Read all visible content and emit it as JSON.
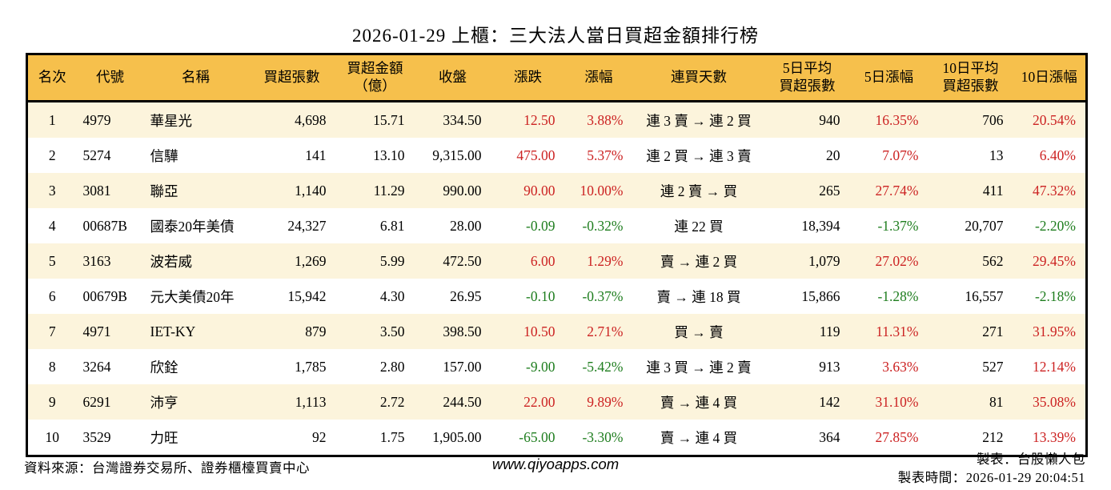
{
  "title": "2026-01-29 上櫃：三大法人當日買超金額排行榜",
  "colors": {
    "header_bg": "#F6C04C",
    "row_alt_bg": "#FCF4DC",
    "up_red": "#CC2222",
    "down_green": "#1E7D1E",
    "border": "#000000"
  },
  "table": {
    "columns": [
      "名次",
      "代號",
      "名稱",
      "買超張數",
      "買超金額\n（億）",
      "收盤",
      "漲跌",
      "漲幅",
      "連買天數",
      "5日平均\n買超張數",
      "5日漲幅",
      "10日平均\n買超張數",
      "10日漲幅"
    ],
    "rows": [
      [
        "1",
        "4979",
        "華星光",
        "4,698",
        "15.71",
        "334.50",
        "12.50",
        "3.88%",
        "連 3 賣 → 連 2 買",
        "940",
        "16.35%",
        "706",
        "20.54%"
      ],
      [
        "2",
        "5274",
        "信驊",
        "141",
        "13.10",
        "9,315.00",
        "475.00",
        "5.37%",
        "連 2 買 → 連 3 賣",
        "20",
        "7.07%",
        "13",
        "6.40%"
      ],
      [
        "3",
        "3081",
        "聯亞",
        "1,140",
        "11.29",
        "990.00",
        "90.00",
        "10.00%",
        "連 2 賣 → 買",
        "265",
        "27.74%",
        "411",
        "47.32%"
      ],
      [
        "4",
        "00687B",
        "國泰20年美債",
        "24,327",
        "6.81",
        "28.00",
        "-0.09",
        "-0.32%",
        "連 22 買",
        "18,394",
        "-1.37%",
        "20,707",
        "-2.20%"
      ],
      [
        "5",
        "3163",
        "波若威",
        "1,269",
        "5.99",
        "472.50",
        "6.00",
        "1.29%",
        "賣 → 連 2 買",
        "1,079",
        "27.02%",
        "562",
        "29.45%"
      ],
      [
        "6",
        "00679B",
        "元大美債20年",
        "15,942",
        "4.30",
        "26.95",
        "-0.10",
        "-0.37%",
        "賣 → 連 18 買",
        "15,866",
        "-1.28%",
        "16,557",
        "-2.18%"
      ],
      [
        "7",
        "4971",
        "IET-KY",
        "879",
        "3.50",
        "398.50",
        "10.50",
        "2.71%",
        "買 → 賣",
        "119",
        "11.31%",
        "271",
        "31.95%"
      ],
      [
        "8",
        "3264",
        "欣銓",
        "1,785",
        "2.80",
        "157.00",
        "-9.00",
        "-5.42%",
        "連 3 買 → 連 2 賣",
        "913",
        "3.63%",
        "527",
        "12.14%"
      ],
      [
        "9",
        "6291",
        "沛亨",
        "1,113",
        "2.72",
        "244.50",
        "22.00",
        "9.89%",
        "賣 → 連 4 買",
        "142",
        "31.10%",
        "81",
        "35.08%"
      ],
      [
        "10",
        "3529",
        "力旺",
        "92",
        "1.75",
        "1,905.00",
        "-65.00",
        "-3.30%",
        "賣 → 連 4 買",
        "364",
        "27.85%",
        "212",
        "13.39%"
      ]
    ]
  },
  "footer": {
    "source": "資料來源：台灣證券交易所、證券櫃檯買賣中心",
    "website": "www.qiyoapps.com",
    "maker": "製表：台股懶人包",
    "made_at": "製表時間：2026-01-29 20:04:51"
  }
}
